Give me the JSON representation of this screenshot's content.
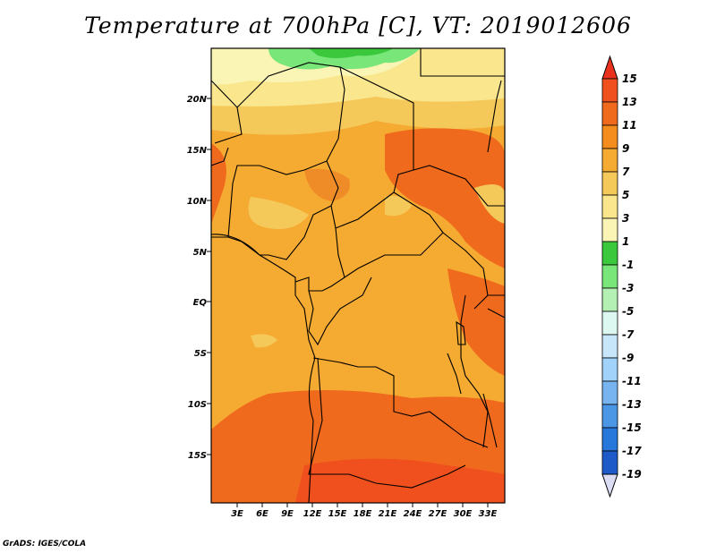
{
  "title": "Temperature at 700hPa [C], VT: 2019012606",
  "credit": "GrADS: IGES/COLA",
  "lat_labels": [
    "20N",
    "15N",
    "10N",
    "5N",
    "EQ",
    "5S",
    "10S",
    "15S"
  ],
  "lon_labels": [
    "3E",
    "6E",
    "9E",
    "12E",
    "15E",
    "18E",
    "21E",
    "24E",
    "27E",
    "30E",
    "33E"
  ],
  "colorbar": {
    "labels": [
      "15",
      "13",
      "11",
      "9",
      "7",
      "5",
      "3",
      "1",
      "-1",
      "-3",
      "-5",
      "-7",
      "-9",
      "-11",
      "-13",
      "-15",
      "-17",
      "-19"
    ],
    "colors": [
      "#e8321e",
      "#f0501e",
      "#f06a1e",
      "#f58c1e",
      "#f5aa32",
      "#f5c85a",
      "#fae68c",
      "#faf5b4",
      "#3cc83c",
      "#78e678",
      "#b4f0b4",
      "#dcf8f0",
      "#c8e6fa",
      "#a0d2fa",
      "#78b4f0",
      "#4c96e6",
      "#2878dc",
      "#1e5ac8",
      "#1440b4",
      "#0a1e8c"
    ],
    "low_cap": "#dcdcf5"
  },
  "field_colors": {
    "orange_main": "#f5aa32",
    "orange_dark": "#f08c28",
    "orange_red": "#f06a1e",
    "red_hot": "#f0501e",
    "yellow": "#fae68c",
    "pale_yellow": "#faf5b4",
    "light_orange": "#f5c85a",
    "green": "#78e678",
    "green_dark": "#3cc83c"
  }
}
